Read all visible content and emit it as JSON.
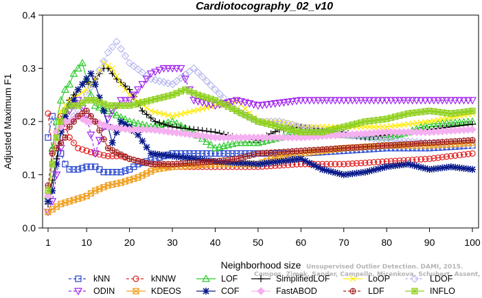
{
  "chart_data": {
    "type": "line",
    "title": "Cardiotocography_02_v10",
    "xlabel": "Neighborhood size",
    "ylabel": "Adjusted Maximum F1",
    "xlim": [
      0,
      100
    ],
    "ylim": [
      0,
      0.4
    ],
    "xticks": [
      1,
      10,
      20,
      30,
      40,
      50,
      60,
      70,
      80,
      90,
      100
    ],
    "yticks": [
      0.0,
      0.1,
      0.2,
      0.3,
      0.4
    ],
    "xtick_labels": [
      "1",
      "10",
      "20",
      "30",
      "40",
      "50",
      "60",
      "70",
      "80",
      "90",
      "100"
    ],
    "ytick_labels": [
      "0.0",
      "0.1",
      "0.2",
      "0.3",
      "0.4"
    ],
    "grid": false,
    "legend_position": "bottom",
    "watermark": [
      "Unsupervised Outlier Detection. DAMI, 2015.",
      "Campos, Zimek, Sander, Campello, Micenkova, Schubert, Assent, Houle"
    ],
    "series": [
      {
        "name": "kNN",
        "color": "#1f3fcc",
        "marker": "square",
        "dash": "4,3",
        "points": [
          [
            1,
            0.17
          ],
          [
            2,
            0.21
          ],
          [
            3,
            0.17
          ],
          [
            4,
            0.14
          ],
          [
            5,
            0.12
          ],
          [
            6,
            0.11
          ],
          [
            8,
            0.11
          ],
          [
            10,
            0.115
          ],
          [
            12,
            0.115
          ],
          [
            14,
            0.105
          ],
          [
            18,
            0.105
          ],
          [
            20,
            0.11
          ],
          [
            22,
            0.12
          ],
          [
            26,
            0.13
          ],
          [
            30,
            0.14
          ],
          [
            40,
            0.14
          ],
          [
            50,
            0.14
          ],
          [
            60,
            0.14
          ],
          [
            70,
            0.145
          ],
          [
            80,
            0.15
          ],
          [
            90,
            0.15
          ],
          [
            100,
            0.155
          ]
        ]
      },
      {
        "name": "kNNW",
        "color": "#e02020",
        "marker": "circle",
        "dash": "4,3",
        "points": [
          [
            1,
            0.215
          ],
          [
            2,
            0.145
          ],
          [
            3,
            0.18
          ],
          [
            4,
            0.21
          ],
          [
            5,
            0.19
          ],
          [
            6,
            0.17
          ],
          [
            8,
            0.15
          ],
          [
            10,
            0.145
          ],
          [
            12,
            0.14
          ],
          [
            15,
            0.135
          ],
          [
            18,
            0.135
          ],
          [
            20,
            0.13
          ],
          [
            25,
            0.12
          ],
          [
            30,
            0.115
          ],
          [
            40,
            0.115
          ],
          [
            50,
            0.115
          ],
          [
            60,
            0.12
          ],
          [
            70,
            0.12
          ],
          [
            80,
            0.125
          ],
          [
            90,
            0.13
          ],
          [
            100,
            0.14
          ]
        ]
      },
      {
        "name": "LOF",
        "color": "#2ec82e",
        "marker": "triangle-up",
        "dash": "",
        "points": [
          [
            1,
            0.06
          ],
          [
            2,
            0.15
          ],
          [
            3,
            0.2
          ],
          [
            4,
            0.24
          ],
          [
            5,
            0.26
          ],
          [
            6,
            0.27
          ],
          [
            7,
            0.29
          ],
          [
            8,
            0.3
          ],
          [
            9,
            0.31
          ],
          [
            10,
            0.28
          ],
          [
            11,
            0.25
          ],
          [
            12,
            0.23
          ],
          [
            15,
            0.22
          ],
          [
            20,
            0.2
          ],
          [
            25,
            0.19
          ],
          [
            30,
            0.2
          ],
          [
            35,
            0.18
          ],
          [
            40,
            0.15
          ],
          [
            45,
            0.16
          ],
          [
            50,
            0.16
          ],
          [
            55,
            0.17
          ],
          [
            60,
            0.18
          ],
          [
            70,
            0.175
          ],
          [
            80,
            0.17
          ],
          [
            85,
            0.18
          ],
          [
            90,
            0.195
          ],
          [
            100,
            0.2
          ]
        ]
      },
      {
        "name": "SimplifiedLOF",
        "color": "#000000",
        "marker": "plus",
        "dash": "",
        "points": [
          [
            1,
            0.045
          ],
          [
            2,
            0.09
          ],
          [
            3,
            0.13
          ],
          [
            4,
            0.18
          ],
          [
            5,
            0.22
          ],
          [
            6,
            0.24
          ],
          [
            7,
            0.25
          ],
          [
            8,
            0.26
          ],
          [
            9,
            0.27
          ],
          [
            10,
            0.275
          ],
          [
            11,
            0.27
          ],
          [
            12,
            0.28
          ],
          [
            13,
            0.29
          ],
          [
            14,
            0.3
          ],
          [
            15,
            0.3
          ],
          [
            17,
            0.28
          ],
          [
            20,
            0.26
          ],
          [
            23,
            0.22
          ],
          [
            26,
            0.2
          ],
          [
            30,
            0.19
          ],
          [
            35,
            0.185
          ],
          [
            40,
            0.18
          ],
          [
            45,
            0.17
          ],
          [
            50,
            0.165
          ],
          [
            55,
            0.185
          ],
          [
            60,
            0.19
          ],
          [
            70,
            0.18
          ],
          [
            75,
            0.17
          ],
          [
            80,
            0.175
          ],
          [
            90,
            0.185
          ],
          [
            100,
            0.195
          ]
        ]
      },
      {
        "name": "LoOP",
        "color": "#ffea00",
        "marker": "x",
        "dash": "",
        "points": [
          [
            1,
            0.06
          ],
          [
            2,
            0.12
          ],
          [
            3,
            0.18
          ],
          [
            4,
            0.22
          ],
          [
            5,
            0.23
          ],
          [
            6,
            0.24
          ],
          [
            8,
            0.25
          ],
          [
            10,
            0.26
          ],
          [
            12,
            0.28
          ],
          [
            14,
            0.31
          ],
          [
            16,
            0.3
          ],
          [
            18,
            0.27
          ],
          [
            20,
            0.25
          ],
          [
            25,
            0.22
          ],
          [
            30,
            0.21
          ],
          [
            40,
            0.23
          ],
          [
            45,
            0.24
          ],
          [
            50,
            0.2
          ],
          [
            55,
            0.2
          ],
          [
            60,
            0.19
          ],
          [
            70,
            0.19
          ],
          [
            80,
            0.19
          ],
          [
            90,
            0.2
          ],
          [
            100,
            0.215
          ]
        ]
      },
      {
        "name": "LDOF",
        "color": "#b8b8f0",
        "marker": "diamond",
        "dash": "4,3",
        "points": [
          [
            1,
            0.05
          ],
          [
            2,
            0.1
          ],
          [
            3,
            0.15
          ],
          [
            4,
            0.19
          ],
          [
            5,
            0.21
          ],
          [
            6,
            0.2
          ],
          [
            8,
            0.22
          ],
          [
            10,
            0.25
          ],
          [
            12,
            0.28
          ],
          [
            15,
            0.33
          ],
          [
            17,
            0.35
          ],
          [
            20,
            0.31
          ],
          [
            25,
            0.28
          ],
          [
            30,
            0.27
          ],
          [
            35,
            0.3
          ],
          [
            40,
            0.26
          ],
          [
            45,
            0.22
          ],
          [
            50,
            0.2
          ],
          [
            55,
            0.2
          ],
          [
            60,
            0.19
          ],
          [
            70,
            0.175
          ],
          [
            80,
            0.165
          ],
          [
            90,
            0.16
          ],
          [
            100,
            0.155
          ]
        ]
      },
      {
        "name": "ODIN",
        "color": "#a020f0",
        "marker": "triangle-down",
        "dash": "4,3",
        "points": [
          [
            1,
            0.03
          ],
          [
            2,
            0.05
          ],
          [
            3,
            0.1
          ],
          [
            4,
            0.15
          ],
          [
            5,
            0.2
          ],
          [
            6,
            0.22
          ],
          [
            8,
            0.24
          ],
          [
            10,
            0.21
          ],
          [
            12,
            0.14
          ],
          [
            14,
            0.19
          ],
          [
            16,
            0.22
          ],
          [
            18,
            0.24
          ],
          [
            20,
            0.24
          ],
          [
            22,
            0.26
          ],
          [
            25,
            0.29
          ],
          [
            28,
            0.3
          ],
          [
            32,
            0.3
          ],
          [
            35,
            0.24
          ],
          [
            40,
            0.23
          ],
          [
            45,
            0.24
          ],
          [
            50,
            0.23
          ],
          [
            55,
            0.235
          ],
          [
            60,
            0.24
          ],
          [
            70,
            0.24
          ],
          [
            80,
            0.24
          ],
          [
            90,
            0.24
          ],
          [
            100,
            0.24
          ]
        ]
      },
      {
        "name": "KDEOS",
        "color": "#f0a020",
        "marker": "square-x",
        "dash": "",
        "points": [
          [
            1,
            0.03
          ],
          [
            2,
            0.035
          ],
          [
            3,
            0.04
          ],
          [
            4,
            0.045
          ],
          [
            6,
            0.05
          ],
          [
            8,
            0.055
          ],
          [
            10,
            0.06
          ],
          [
            12,
            0.07
          ],
          [
            15,
            0.08
          ],
          [
            18,
            0.085
          ],
          [
            22,
            0.095
          ],
          [
            26,
            0.11
          ],
          [
            30,
            0.115
          ],
          [
            40,
            0.12
          ],
          [
            50,
            0.12
          ],
          [
            55,
            0.135
          ],
          [
            60,
            0.14
          ],
          [
            70,
            0.15
          ],
          [
            80,
            0.155
          ],
          [
            90,
            0.155
          ],
          [
            100,
            0.16
          ]
        ]
      },
      {
        "name": "COF",
        "color": "#0a1a8a",
        "marker": "asterisk",
        "dash": "",
        "points": [
          [
            1,
            0.05
          ],
          [
            2,
            0.07
          ],
          [
            3,
            0.12
          ],
          [
            4,
            0.18
          ],
          [
            5,
            0.21
          ],
          [
            6,
            0.23
          ],
          [
            7,
            0.24
          ],
          [
            8,
            0.26
          ],
          [
            9,
            0.27
          ],
          [
            10,
            0.28
          ],
          [
            11,
            0.29
          ],
          [
            12,
            0.27
          ],
          [
            14,
            0.22
          ],
          [
            16,
            0.16
          ],
          [
            18,
            0.2
          ],
          [
            20,
            0.19
          ],
          [
            22,
            0.175
          ],
          [
            25,
            0.14
          ],
          [
            30,
            0.135
          ],
          [
            40,
            0.125
          ],
          [
            50,
            0.12
          ],
          [
            55,
            0.125
          ],
          [
            60,
            0.13
          ],
          [
            65,
            0.11
          ],
          [
            70,
            0.1
          ],
          [
            75,
            0.105
          ],
          [
            80,
            0.115
          ],
          [
            85,
            0.12
          ],
          [
            90,
            0.11
          ],
          [
            95,
            0.115
          ],
          [
            100,
            0.11
          ]
        ]
      },
      {
        "name": "FastABOD",
        "color": "#f5b0f0",
        "marker": "diamond-filled",
        "dash": "",
        "points": [
          [
            1,
            0.06
          ],
          [
            2,
            0.14
          ],
          [
            3,
            0.18
          ],
          [
            4,
            0.19
          ],
          [
            5,
            0.2
          ],
          [
            6,
            0.2
          ],
          [
            8,
            0.21
          ],
          [
            10,
            0.2
          ],
          [
            12,
            0.2
          ],
          [
            15,
            0.19
          ],
          [
            20,
            0.185
          ],
          [
            25,
            0.185
          ],
          [
            30,
            0.18
          ],
          [
            40,
            0.17
          ],
          [
            50,
            0.17
          ],
          [
            60,
            0.17
          ],
          [
            70,
            0.175
          ],
          [
            80,
            0.18
          ],
          [
            90,
            0.18
          ],
          [
            100,
            0.185
          ]
        ]
      },
      {
        "name": "LDF",
        "color": "#a02020",
        "marker": "circle-plus",
        "dash": "4,3",
        "points": [
          [
            1,
            0.08
          ],
          [
            2,
            0.14
          ],
          [
            3,
            0.15
          ],
          [
            4,
            0.16
          ],
          [
            5,
            0.17
          ],
          [
            6,
            0.19
          ],
          [
            8,
            0.21
          ],
          [
            10,
            0.22
          ],
          [
            12,
            0.2
          ],
          [
            15,
            0.15
          ],
          [
            20,
            0.13
          ],
          [
            25,
            0.12
          ],
          [
            30,
            0.12
          ],
          [
            40,
            0.125
          ],
          [
            45,
            0.13
          ],
          [
            50,
            0.14
          ],
          [
            60,
            0.145
          ],
          [
            70,
            0.15
          ],
          [
            80,
            0.155
          ],
          [
            90,
            0.16
          ],
          [
            100,
            0.165
          ]
        ]
      },
      {
        "name": "INFLO",
        "color": "#90d020",
        "marker": "square-asterisk",
        "dash": "",
        "points": [
          [
            1,
            0.07
          ],
          [
            2,
            0.12
          ],
          [
            3,
            0.17
          ],
          [
            4,
            0.2
          ],
          [
            5,
            0.22
          ],
          [
            6,
            0.23
          ],
          [
            8,
            0.23
          ],
          [
            10,
            0.24
          ],
          [
            12,
            0.24
          ],
          [
            15,
            0.23
          ],
          [
            20,
            0.23
          ],
          [
            25,
            0.24
          ],
          [
            30,
            0.25
          ],
          [
            33,
            0.26
          ],
          [
            36,
            0.25
          ],
          [
            40,
            0.24
          ],
          [
            45,
            0.22
          ],
          [
            50,
            0.2
          ],
          [
            55,
            0.19
          ],
          [
            60,
            0.18
          ],
          [
            65,
            0.18
          ],
          [
            70,
            0.19
          ],
          [
            75,
            0.2
          ],
          [
            80,
            0.205
          ],
          [
            85,
            0.215
          ],
          [
            90,
            0.22
          ],
          [
            95,
            0.215
          ],
          [
            100,
            0.22
          ]
        ]
      }
    ]
  }
}
